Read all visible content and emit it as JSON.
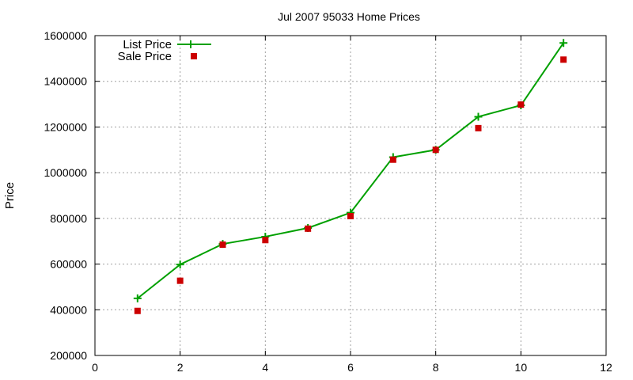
{
  "chart_data": {
    "type": "line",
    "title": "Jul 2007 95033 Home Prices",
    "xlabel": "",
    "ylabel": "Price",
    "xlim": [
      0,
      12
    ],
    "ylim": [
      200000,
      1600000
    ],
    "xticks": [
      0,
      2,
      4,
      6,
      8,
      10,
      12
    ],
    "yticks": [
      200000,
      400000,
      600000,
      800000,
      1000000,
      1200000,
      1400000,
      1600000
    ],
    "xtick_labels": [
      "0",
      "2",
      "4",
      "6",
      "8",
      "10",
      "12"
    ],
    "ytick_labels": [
      "200000",
      "400000",
      "600000",
      "800000",
      "1000000",
      "1200000",
      "1400000",
      "1600000"
    ],
    "grid": true,
    "legend_position": "top-left",
    "series": [
      {
        "name": "List Price",
        "style": "line-with-plus-markers",
        "color": "#00a000",
        "x": [
          1,
          2,
          3,
          4,
          5,
          6,
          7,
          8,
          9,
          10,
          11
        ],
        "y": [
          450000,
          598000,
          688000,
          720000,
          758000,
          825000,
          1068000,
          1100000,
          1245000,
          1295000,
          1568000
        ]
      },
      {
        "name": "Sale Price",
        "style": "square-markers",
        "color": "#cc0000",
        "x": [
          1,
          2,
          3,
          4,
          5,
          6,
          7,
          8,
          9,
          10,
          11
        ],
        "y": [
          395000,
          527000,
          685000,
          705000,
          755000,
          810000,
          1057000,
          1100000,
          1195000,
          1298000,
          1495000
        ]
      }
    ]
  }
}
